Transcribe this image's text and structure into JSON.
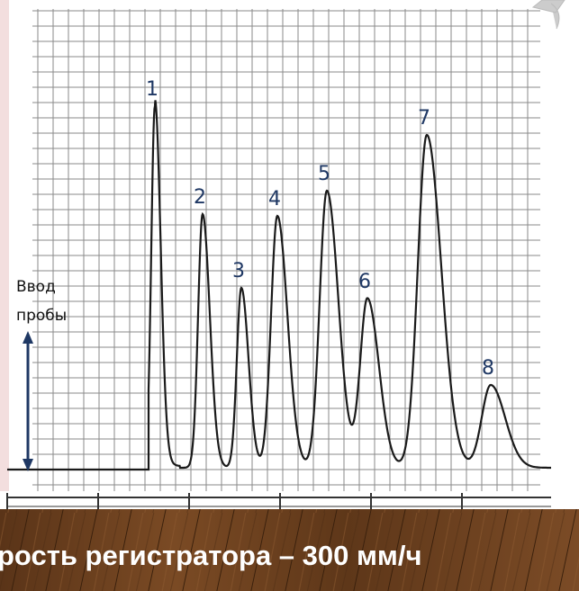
{
  "injection_label": {
    "line1": "Ввод",
    "line2": "пробы"
  },
  "peaks": [
    {
      "label": "1"
    },
    {
      "label": "2"
    },
    {
      "label": "3"
    },
    {
      "label": "4"
    },
    {
      "label": "5"
    },
    {
      "label": "6"
    },
    {
      "label": "7"
    },
    {
      "label": "8"
    }
  ],
  "caption": "рость регистратора – 300 мм/ч"
}
